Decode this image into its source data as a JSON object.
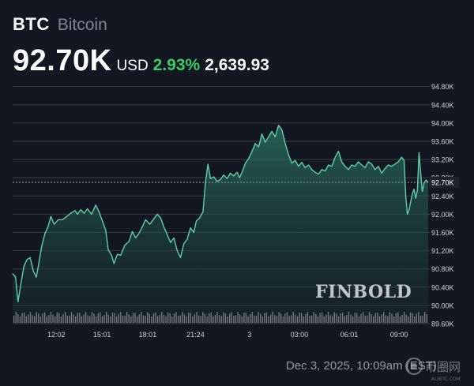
{
  "header": {
    "symbol": "BTC",
    "name": "Bitcoin",
    "price": "92.70K",
    "currency": "USD",
    "change_pct": "2.93%",
    "change_abs": "2,639.93"
  },
  "watermark": "FINBOLD",
  "date_label": "Dec 3, 2025, 10:09am (EST)",
  "corner_logo": {
    "text": "币圈网",
    "subtext": "ALIBTC.COM"
  },
  "colors": {
    "background": "#131722",
    "line": "#5fd0a8",
    "grid": "#3a3e4a",
    "positive": "#3ecb67",
    "text": "#d1d4dc"
  },
  "chart_data": {
    "type": "area",
    "title": "",
    "xlabel": "",
    "ylabel": "",
    "x_ticks": [
      "12:02",
      "15:01",
      "18:01",
      "21:24",
      "3",
      "03:00",
      "06:01",
      "09:00"
    ],
    "y_ticks": [
      "94.80K",
      "94.40K",
      "94.00K",
      "93.60K",
      "93.20K",
      "92.80K",
      "92.40K",
      "92.00K",
      "91.60K",
      "91.20K",
      "90.80K",
      "90.40K",
      "90.00K",
      "89.60K"
    ],
    "ylim": [
      89.6,
      94.95
    ],
    "grid": true,
    "current_value_label": "92.70K",
    "current_value": 92.7,
    "x_index_range": [
      0,
      100
    ],
    "x_tick_index": [
      10.5,
      21.5,
      32.5,
      44,
      57,
      69,
      81,
      93
    ],
    "series": [
      {
        "values": [
          [
            0,
            90.7
          ],
          [
            0.7,
            90.62
          ],
          [
            1.3,
            90.08
          ],
          [
            2.0,
            90.48
          ],
          [
            2.7,
            90.85
          ],
          [
            3.4,
            91.0
          ],
          [
            4.2,
            91.05
          ],
          [
            5.0,
            90.75
          ],
          [
            5.7,
            90.62
          ],
          [
            6.3,
            90.92
          ],
          [
            7.0,
            91.3
          ],
          [
            7.8,
            91.58
          ],
          [
            8.5,
            91.72
          ],
          [
            9.2,
            91.95
          ],
          [
            10.0,
            91.78
          ],
          [
            11.0,
            91.88
          ],
          [
            12.0,
            91.88
          ],
          [
            13.0,
            91.95
          ],
          [
            14.0,
            92.02
          ],
          [
            15.0,
            92.08
          ],
          [
            15.6,
            92.0
          ],
          [
            16.4,
            92.1
          ],
          [
            17.2,
            92.02
          ],
          [
            18.0,
            92.12
          ],
          [
            19.0,
            92.0
          ],
          [
            20.0,
            92.2
          ],
          [
            20.8,
            92.05
          ],
          [
            21.6,
            91.85
          ],
          [
            22.4,
            91.65
          ],
          [
            23.0,
            91.22
          ],
          [
            23.8,
            91.1
          ],
          [
            24.4,
            90.92
          ],
          [
            25.2,
            91.12
          ],
          [
            26.0,
            91.1
          ],
          [
            27.0,
            91.32
          ],
          [
            28.0,
            91.4
          ],
          [
            28.8,
            91.62
          ],
          [
            29.6,
            91.48
          ],
          [
            30.4,
            91.58
          ],
          [
            31.2,
            91.72
          ],
          [
            32.0,
            91.88
          ],
          [
            33.0,
            91.78
          ],
          [
            34.0,
            91.9
          ],
          [
            34.8,
            92.0
          ],
          [
            35.6,
            91.92
          ],
          [
            36.4,
            91.72
          ],
          [
            37.2,
            91.55
          ],
          [
            38.0,
            91.38
          ],
          [
            38.8,
            91.48
          ],
          [
            39.6,
            91.2
          ],
          [
            40.4,
            91.05
          ],
          [
            41.2,
            91.35
          ],
          [
            42.0,
            91.45
          ],
          [
            42.8,
            91.7
          ],
          [
            43.6,
            91.6
          ],
          [
            44.2,
            91.85
          ],
          [
            45.0,
            91.92
          ],
          [
            45.8,
            92.05
          ],
          [
            46.4,
            92.7
          ],
          [
            47.0,
            93.1
          ],
          [
            47.6,
            92.78
          ],
          [
            48.4,
            92.82
          ],
          [
            49.2,
            92.72
          ],
          [
            50.0,
            92.76
          ],
          [
            50.8,
            92.86
          ],
          [
            51.6,
            92.78
          ],
          [
            52.4,
            92.9
          ],
          [
            53.2,
            92.84
          ],
          [
            54.0,
            92.92
          ],
          [
            54.6,
            92.8
          ],
          [
            55.2,
            92.92
          ],
          [
            56.0,
            93.12
          ],
          [
            56.8,
            93.22
          ],
          [
            57.6,
            93.38
          ],
          [
            58.4,
            93.55
          ],
          [
            59.2,
            93.48
          ],
          [
            60.0,
            93.76
          ],
          [
            60.8,
            93.58
          ],
          [
            61.6,
            93.7
          ],
          [
            62.4,
            93.82
          ],
          [
            63.2,
            93.7
          ],
          [
            64.0,
            93.95
          ],
          [
            64.8,
            93.85
          ],
          [
            65.6,
            93.55
          ],
          [
            66.4,
            93.3
          ],
          [
            67.2,
            93.12
          ],
          [
            68.0,
            93.18
          ],
          [
            68.8,
            93.05
          ],
          [
            69.6,
            93.14
          ],
          [
            70.4,
            93.02
          ],
          [
            71.2,
            93.08
          ],
          [
            72.0,
            92.98
          ],
          [
            72.8,
            92.92
          ],
          [
            73.6,
            92.88
          ],
          [
            74.4,
            92.98
          ],
          [
            75.2,
            92.95
          ],
          [
            76.0,
            93.08
          ],
          [
            76.8,
            93.05
          ],
          [
            77.6,
            93.25
          ],
          [
            78.4,
            93.38
          ],
          [
            79.2,
            93.15
          ],
          [
            80.0,
            93.05
          ],
          [
            80.8,
            92.98
          ],
          [
            81.6,
            93.08
          ],
          [
            82.4,
            93.05
          ],
          [
            83.2,
            93.15
          ],
          [
            84.0,
            93.08
          ],
          [
            84.8,
            93.02
          ],
          [
            85.6,
            93.15
          ],
          [
            86.4,
            93.1
          ],
          [
            87.2,
            92.98
          ],
          [
            88.0,
            93.05
          ],
          [
            88.8,
            92.9
          ],
          [
            89.6,
            93.0
          ],
          [
            90.4,
            93.08
          ],
          [
            91.2,
            93.05
          ],
          [
            92.0,
            93.1
          ],
          [
            92.8,
            93.15
          ],
          [
            93.6,
            93.25
          ],
          [
            94.2,
            93.18
          ],
          [
            94.6,
            92.4
          ],
          [
            95.0,
            92.0
          ],
          [
            95.4,
            92.1
          ],
          [
            95.8,
            92.28
          ],
          [
            96.2,
            92.45
          ],
          [
            96.6,
            92.55
          ],
          [
            97.0,
            92.35
          ],
          [
            97.4,
            92.52
          ],
          [
            97.8,
            93.35
          ],
          [
            98.2,
            92.9
          ],
          [
            98.6,
            92.5
          ],
          [
            99.0,
            92.68
          ],
          [
            99.5,
            92.75
          ],
          [
            100,
            92.7
          ]
        ]
      }
    ]
  }
}
